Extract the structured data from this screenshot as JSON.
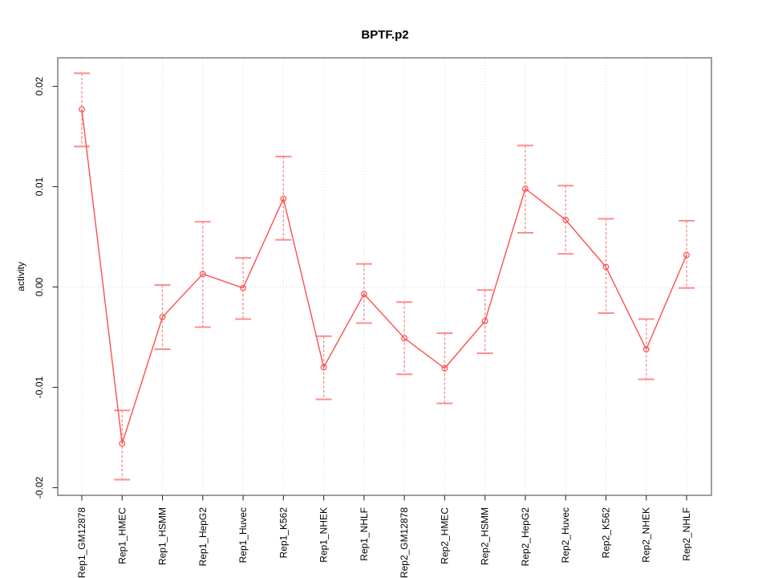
{
  "chart_data": {
    "type": "line",
    "title": "BPTF.p2",
    "xlabel": "",
    "ylabel": "activity",
    "legend": "none",
    "grid": "vertical dotted gridline at every category; dotted horizontal line at y=0; no other horizontal gridlines",
    "categories": [
      "Rep1_GM12878",
      "Rep1_HMEC",
      "Rep1_HSMM",
      "Rep1_HepG2",
      "Rep1_Huvec",
      "Rep1_K562",
      "Rep1_NHEK",
      "Rep1_NHLF",
      "Rep2_GM12878",
      "Rep2_HMEC",
      "Rep2_HSMM",
      "Rep2_HepG2",
      "Rep2_Huvec",
      "Rep2_K562",
      "Rep2_NHEK",
      "Rep2_NHLF"
    ],
    "series": [
      {
        "name": "activity",
        "values": [
          0.0177,
          -0.0156,
          -0.003,
          0.0013,
          -0.0001,
          0.0088,
          -0.008,
          -0.0007,
          -0.0051,
          -0.0081,
          -0.0034,
          0.0098,
          0.0067,
          0.002,
          -0.0062,
          0.0032
        ],
        "upper": [
          0.0213,
          -0.0123,
          0.0002,
          0.0065,
          0.0029,
          0.013,
          -0.0049,
          0.0023,
          -0.0015,
          -0.0046,
          -0.0003,
          0.0141,
          0.0101,
          0.0068,
          -0.0032,
          0.0066
        ],
        "lower": [
          0.014,
          -0.0192,
          -0.0062,
          -0.004,
          -0.0032,
          0.0047,
          -0.0112,
          -0.0036,
          -0.0087,
          -0.0116,
          -0.0066,
          0.0054,
          0.0033,
          -0.0026,
          -0.0092,
          -0.0001
        ]
      }
    ],
    "yticks": [
      -0.02,
      -0.01,
      0,
      0.01,
      0.02
    ],
    "ytick_labels": [
      "-0.02",
      "-0.01",
      "0.00",
      "0.01",
      "0.02"
    ],
    "ylim": [
      -0.0208,
      0.0228
    ],
    "colors": {
      "line": "#FC4F4F",
      "point": "#FC4F4F",
      "error_bar": "#FF8C8C",
      "grid": "#D8D8D8",
      "border": "#858585",
      "tick": "#333333",
      "text": "#000000",
      "background": "#FFFFFF"
    }
  }
}
